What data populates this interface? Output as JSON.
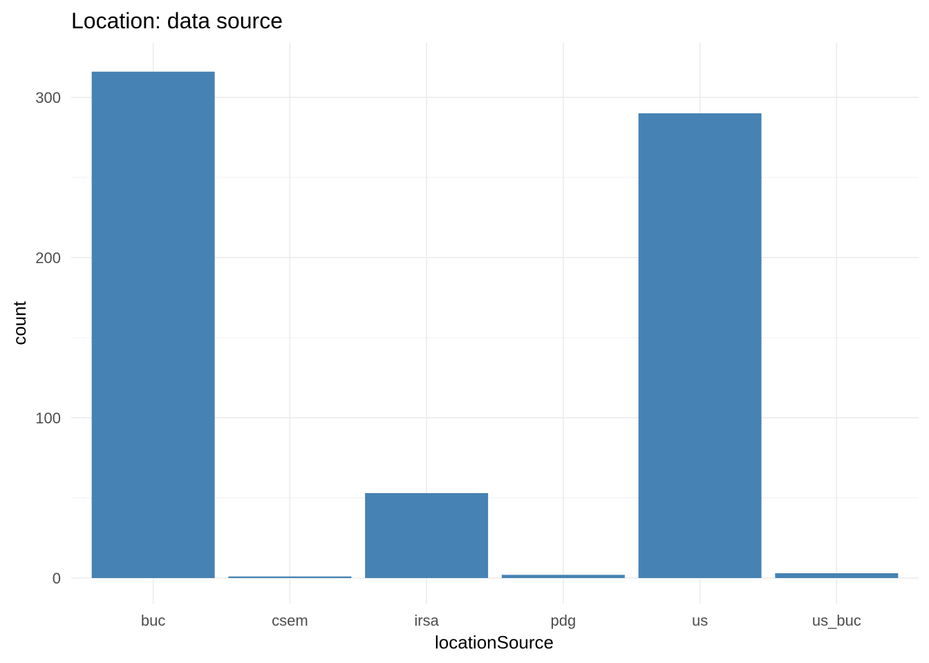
{
  "chart_data": {
    "type": "bar",
    "title": "Location: data source",
    "xlabel": "locationSource",
    "ylabel": "count",
    "categories": [
      "buc",
      "csem",
      "irsa",
      "pdg",
      "us",
      "us_buc"
    ],
    "values": [
      316,
      1,
      53,
      2,
      290,
      3
    ],
    "ylim": [
      0,
      334
    ],
    "yticks": [
      0,
      100,
      200,
      300
    ],
    "yticks_minor": [
      50,
      150,
      250
    ],
    "grid": true,
    "legend": "none",
    "bar_color": "#4682b4"
  }
}
